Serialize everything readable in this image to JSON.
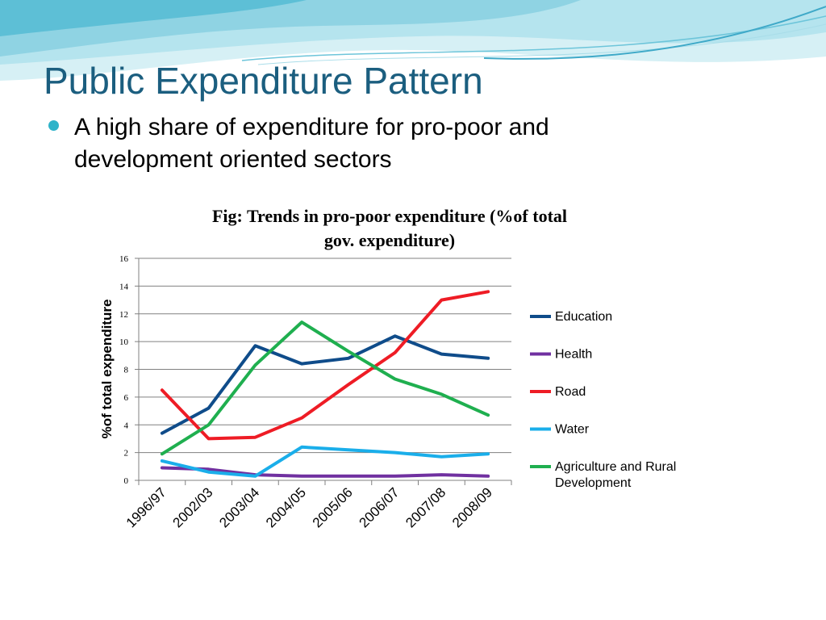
{
  "slide": {
    "title": "Public Expenditure Pattern",
    "bullet": "A high share of expenditure for pro-poor and development oriented sectors"
  },
  "colors": {
    "title": "#1B5E7F",
    "bullet": "#2FB3C9",
    "banner_light": "#D6F0F5",
    "banner_mid": "#8FD3E3",
    "banner_dark": "#3FA9C8"
  },
  "chart_data": {
    "type": "line",
    "title_lines": [
      "Fig: Trends in pro-poor expenditure (%of total",
      "gov. expenditure)"
    ],
    "xlabel": "",
    "ylabel": "%of total expenditure",
    "ylim": [
      0,
      16
    ],
    "yticks": [
      0,
      2,
      4,
      6,
      8,
      10,
      12,
      14,
      16
    ],
    "grid": true,
    "legend_position": "right",
    "categories": [
      "1996/97",
      "2002/03",
      "2003/04",
      "2004/05",
      "2005/06",
      "2006/07",
      "2007/08",
      "2008/09"
    ],
    "series": [
      {
        "name": "Education",
        "color": "#0F4C8A",
        "values": [
          3.4,
          5.2,
          9.7,
          8.4,
          8.8,
          10.4,
          9.1,
          8.8
        ]
      },
      {
        "name": "Health",
        "color": "#7030A0",
        "values": [
          0.9,
          0.8,
          0.4,
          0.3,
          0.3,
          0.3,
          0.4,
          0.3
        ]
      },
      {
        "name": "Road",
        "color": "#EE1C25",
        "values": [
          6.5,
          3.0,
          3.1,
          4.5,
          6.9,
          9.2,
          13.0,
          13.6
        ]
      },
      {
        "name": "Water",
        "color": "#1AAEEA",
        "values": [
          1.4,
          0.6,
          0.3,
          2.4,
          2.2,
          2.0,
          1.7,
          1.9
        ]
      },
      {
        "name": "Agriculture and Rural Development",
        "color": "#1FAF4F",
        "values": [
          1.9,
          4.0,
          8.3,
          11.4,
          9.3,
          7.3,
          6.2,
          4.7
        ]
      }
    ]
  }
}
